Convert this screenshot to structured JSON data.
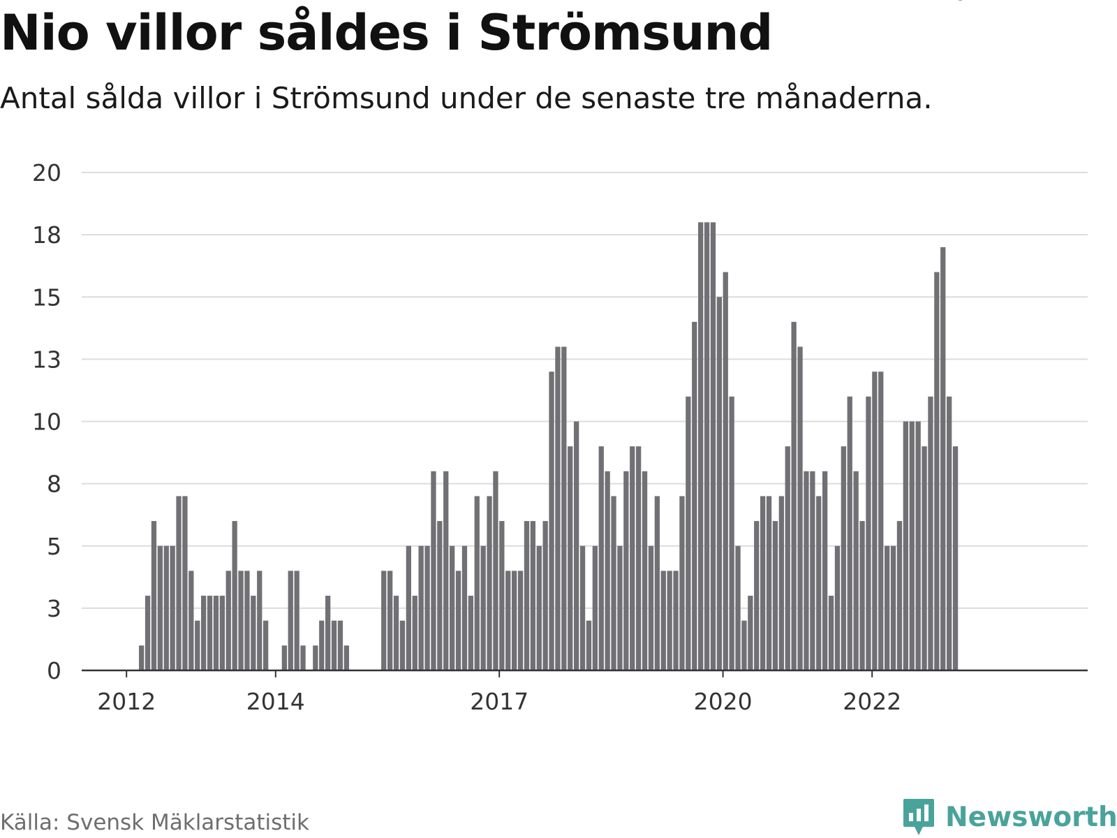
{
  "title": "Nio villor såldes i Strömsund",
  "subtitle": "Antal sålda villor i Strömsund under de senaste tre månaderna.",
  "source": "Källa: Svensk Mäklarstatistik",
  "brand": {
    "name": "Newsworthy",
    "icon": "newsworthy-logo-icon",
    "color": "#4aa39b"
  },
  "colors": {
    "bar": "#717075",
    "highlight": "#1a9f98",
    "grid": "#dcdcdc",
    "axis": "#333333"
  },
  "chart_data": {
    "type": "bar",
    "title": "Nio villor såldes i Strömsund",
    "subtitle": "Antal sålda villor i Strömsund under de senaste tre månaderna.",
    "ylim": [
      0,
      20
    ],
    "yticks": [
      "0",
      "3",
      "5",
      "8",
      "10",
      "13",
      "15",
      "18",
      "20"
    ],
    "ytick_values": [
      0,
      2.5,
      5,
      7.5,
      10,
      12.5,
      15,
      17.5,
      20
    ],
    "xticks": [
      "2012",
      "2014",
      "2017",
      "2020",
      "2022"
    ],
    "xtick_month_index": [
      8,
      32,
      68,
      104,
      128
    ],
    "grid": true,
    "start_month": "2011-10",
    "values": [
      0,
      0,
      0,
      0,
      0,
      0,
      0,
      0,
      0,
      0,
      1,
      3,
      6,
      5,
      5,
      5,
      7,
      7,
      4,
      2,
      3,
      3,
      3,
      3,
      4,
      6,
      4,
      4,
      3,
      4,
      2,
      0,
      0,
      1,
      4,
      4,
      1,
      0,
      1,
      2,
      3,
      2,
      2,
      1,
      0,
      0,
      0,
      0,
      0,
      4,
      4,
      3,
      2,
      5,
      3,
      5,
      5,
      8,
      6,
      8,
      5,
      4,
      5,
      3,
      7,
      5,
      7,
      8,
      6,
      4,
      4,
      4,
      6,
      6,
      5,
      6,
      12,
      13,
      13,
      9,
      10,
      5,
      2,
      5,
      9,
      8,
      7,
      5,
      8,
      9,
      9,
      8,
      5,
      7,
      4,
      4,
      4,
      7,
      11,
      14,
      18,
      18,
      18,
      15,
      16,
      11,
      5,
      2,
      3,
      6,
      7,
      7,
      6,
      7,
      9,
      14,
      13,
      8,
      8,
      7,
      8,
      3,
      5,
      9,
      11,
      8,
      6,
      11,
      12,
      12,
      5,
      5,
      6,
      10,
      10,
      10,
      9,
      11,
      16,
      17,
      11,
      9
    ],
    "highlight_index": 142,
    "highlight_label": "9"
  }
}
